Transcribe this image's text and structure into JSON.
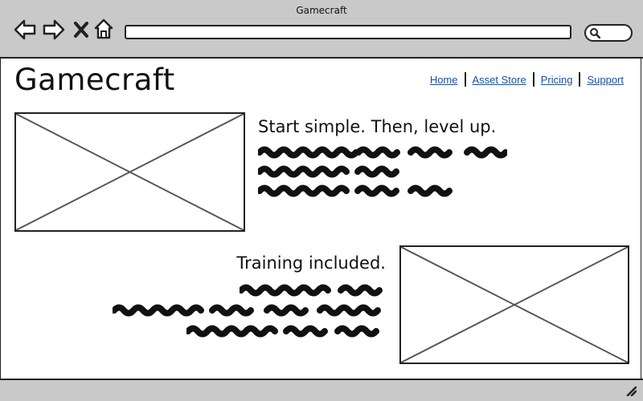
{
  "window": {
    "title": "Gamecraft"
  },
  "toolbar": {
    "back_icon": "back-arrow-icon",
    "forward_icon": "forward-arrow-icon",
    "stop_icon": "close-icon",
    "home_icon": "home-icon",
    "address_value": "",
    "search_icon": "search-icon"
  },
  "header": {
    "brand": "Gamecraft",
    "nav": [
      {
        "label": "Home"
      },
      {
        "label": "Asset Store"
      },
      {
        "label": "Pricing"
      },
      {
        "label": "Support"
      }
    ]
  },
  "sections": [
    {
      "heading": "Start simple. Then, level up."
    },
    {
      "heading": "Training included."
    }
  ],
  "colors": {
    "chrome": "#c9c9c9",
    "link": "#1a4f9c",
    "ink": "#111111"
  }
}
